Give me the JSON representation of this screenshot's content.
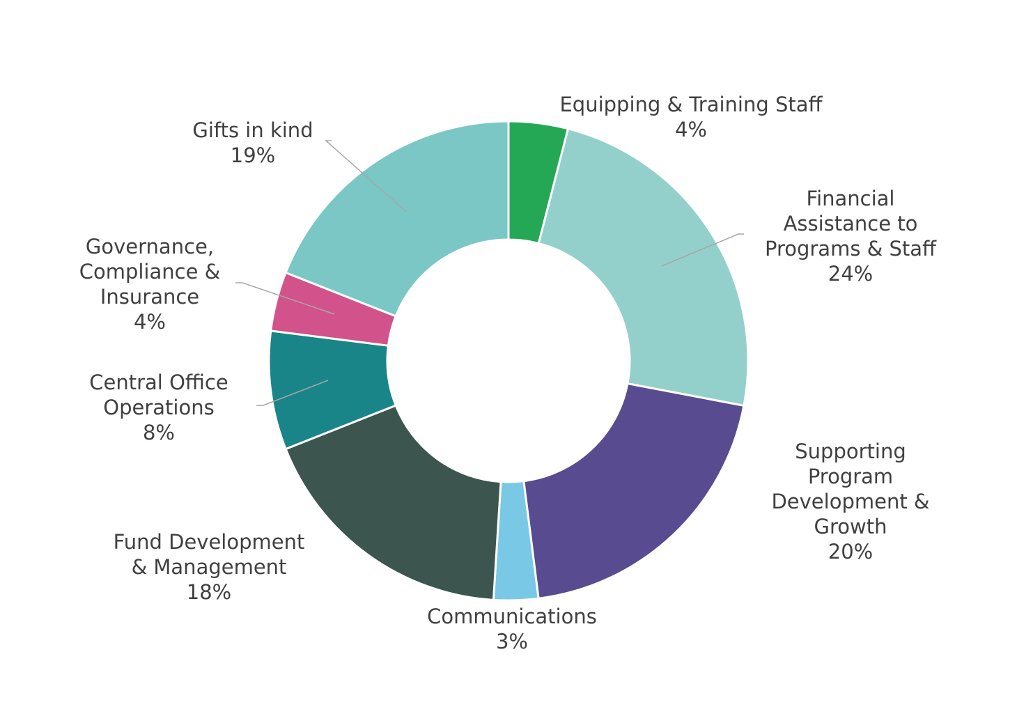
{
  "chart_data": {
    "type": "pie",
    "donut": true,
    "title": "",
    "start_angle_deg": 0,
    "direction": "clockwise",
    "slices": [
      {
        "label": "Equipping & Training Staff",
        "value": 4,
        "value_label": "4%",
        "color": "#24a855"
      },
      {
        "label": "Financial Assistance to Programs & Staff",
        "value": 24,
        "value_label": "24%",
        "color": "#94d0cb"
      },
      {
        "label": "Supporting Program Development & Growth",
        "value": 20,
        "value_label": "20%",
        "color": "#584b8f"
      },
      {
        "label": "Communications",
        "value": 3,
        "value_label": "3%",
        "color": "#78c8e6"
      },
      {
        "label": "Fund Development & Management",
        "value": 18,
        "value_label": "18%",
        "color": "#3c554f"
      },
      {
        "label": "Central Office Operations",
        "value": 8,
        "value_label": "8%",
        "color": "#1a8588"
      },
      {
        "label": "Governance, Compliance & Insurance",
        "value": 4,
        "value_label": "4%",
        "color": "#d2528c"
      },
      {
        "label": "Gifts in kind",
        "value": 19,
        "value_label": "19%",
        "color": "#7ac7c6"
      }
    ]
  },
  "labels": [
    {
      "lines": [
        "Equipping & Training Staff",
        "4%"
      ]
    },
    {
      "lines": [
        "Financial",
        "Assistance to",
        "Programs & Staff",
        "24%"
      ]
    },
    {
      "lines": [
        "Supporting",
        "Program",
        "Development &",
        "Growth",
        "20%"
      ]
    },
    {
      "lines": [
        "Communications",
        "3%"
      ]
    },
    {
      "lines": [
        "Fund Development",
        "& Management",
        "18%"
      ]
    },
    {
      "lines": [
        "Central Office",
        "Operations",
        "8%"
      ]
    },
    {
      "lines": [
        "Governance,",
        "Compliance &",
        "Insurance",
        "4%"
      ]
    },
    {
      "lines": [
        "Gifts in kind",
        "19%"
      ]
    }
  ]
}
